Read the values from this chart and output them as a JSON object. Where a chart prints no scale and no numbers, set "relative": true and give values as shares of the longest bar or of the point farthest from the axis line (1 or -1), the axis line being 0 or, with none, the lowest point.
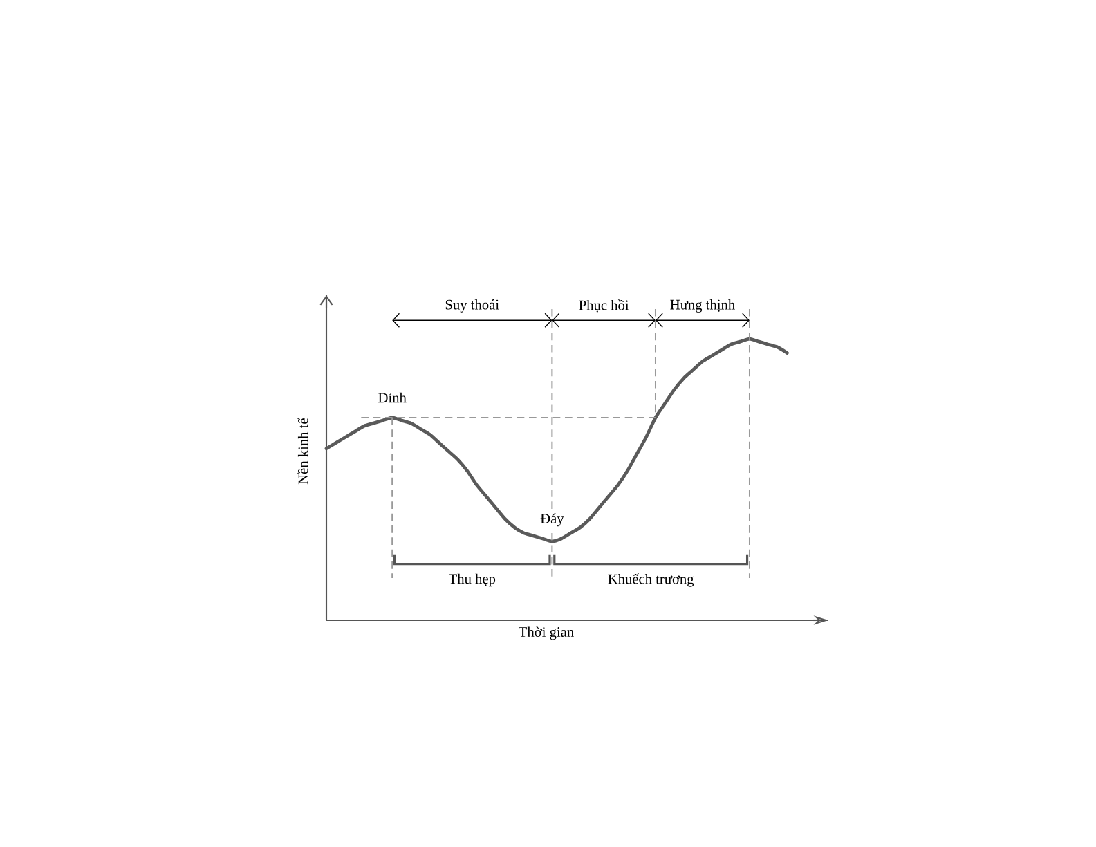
{
  "chart_data": {
    "type": "line",
    "relative": true,
    "grid": "x",
    "xlabel": "Thời gian",
    "ylabel": "Nền kinh tế",
    "categories": [
      null,
      null,
      null,
      null,
      null,
      null,
      null,
      null,
      null,
      null,
      null,
      null,
      null,
      null,
      null,
      null,
      null,
      null,
      null,
      null,
      null,
      null,
      null,
      null,
      null,
      null,
      null,
      null,
      null,
      null,
      null,
      null,
      null,
      null,
      null,
      null,
      null,
      null,
      null,
      null,
      null,
      null,
      null,
      null,
      null,
      null,
      null,
      null,
      null,
      null
    ],
    "series": [
      {
        "color": "#5a5a5a",
        "values": [
          0.61,
          0.63,
          0.65,
          0.67,
          0.69,
          0.7,
          0.71,
          0.72,
          0.71,
          0.7,
          0.68,
          0.66,
          0.63,
          0.6,
          0.57,
          0.53,
          0.48,
          0.44,
          0.4,
          0.36,
          0.33,
          0.31,
          0.3,
          0.29,
          0.28,
          0.29,
          0.31,
          0.33,
          0.36,
          0.4,
          0.44,
          0.48,
          0.53,
          0.59,
          0.65,
          0.72,
          0.77,
          0.82,
          0.86,
          0.89,
          0.92,
          0.94,
          0.96,
          0.98,
          0.99,
          1.0,
          0.99,
          0.98,
          0.97,
          0.95
        ]
      }
    ],
    "ref_lines": [
      {
        "axis": "y",
        "value": 0.72,
        "color": "#999999",
        "line_style": "dashed"
      }
    ],
    "annotations": [
      "Suy thoái",
      "Phục hồi",
      "Hưng thịnh",
      {
        "text": "Đỉnh",
        "y": 0.72
      },
      {
        "text": "Đáy",
        "y": 0.28
      },
      "Thu hẹp",
      "Khuếch trương"
    ]
  }
}
